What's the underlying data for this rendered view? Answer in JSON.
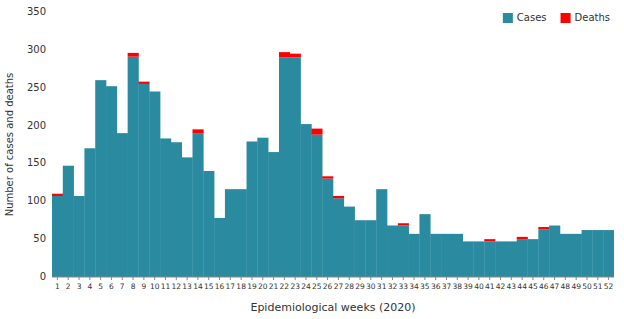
{
  "chart_data": {
    "type": "bar",
    "stacked": true,
    "xlabel": "Epidemiological weeks (2020)",
    "ylabel": "Number of cases and deaths",
    "categories": [
      "1",
      "2",
      "3",
      "4",
      "5",
      "6",
      "7",
      "8",
      "9",
      "10",
      "11",
      "12",
      "13",
      "14",
      "15",
      "16",
      "17",
      "18",
      "19",
      "20",
      "21",
      "22",
      "23",
      "24",
      "25",
      "26",
      "27",
      "28",
      "29",
      "30",
      "31",
      "32",
      "33",
      "34",
      "35",
      "36",
      "37",
      "38",
      "39",
      "40",
      "41",
      "42",
      "43",
      "44",
      "45",
      "46",
      "47",
      "48",
      "49",
      "50",
      "51",
      "52"
    ],
    "series": [
      {
        "name": "Cases",
        "color": "#2A8A9F",
        "values": [
          107,
          147,
          107,
          170,
          260,
          252,
          190,
          291,
          255,
          245,
          183,
          178,
          158,
          190,
          140,
          78,
          116,
          116,
          179,
          184,
          165,
          290,
          290,
          202,
          188,
          130,
          104,
          93,
          75,
          75,
          116,
          68,
          68,
          57,
          83,
          57,
          57,
          57,
          47,
          47,
          47,
          47,
          47,
          50,
          50,
          63,
          68,
          57,
          57,
          62,
          62,
          62
        ]
      },
      {
        "name": "Deaths",
        "color": "#FF0000",
        "values": [
          3,
          0,
          0,
          0,
          0,
          0,
          0,
          5,
          3,
          0,
          0,
          0,
          0,
          5,
          0,
          0,
          0,
          0,
          0,
          0,
          0,
          7,
          5,
          0,
          8,
          3,
          3,
          0,
          0,
          0,
          0,
          0,
          3,
          0,
          0,
          0,
          0,
          0,
          0,
          0,
          3,
          0,
          0,
          3,
          0,
          3,
          0,
          0,
          0,
          0,
          0,
          0
        ]
      }
    ],
    "ylim": [
      0,
      350
    ],
    "yticks": [
      0,
      50,
      100,
      150,
      200,
      250,
      300,
      350
    ],
    "grid": false,
    "legend": "upper right"
  }
}
